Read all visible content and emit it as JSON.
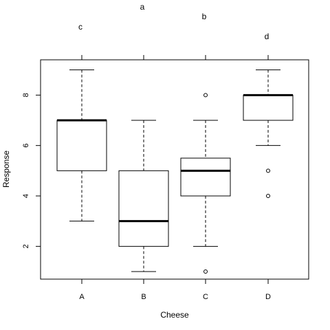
{
  "chart_data": {
    "type": "boxplot",
    "xlabel": "Cheese",
    "ylabel": "Response",
    "ylim": [
      0.7,
      9.4
    ],
    "yticks": [
      2,
      4,
      6,
      8
    ],
    "grid": false,
    "categories": [
      "A",
      "B",
      "C",
      "D"
    ],
    "boxes": [
      {
        "category": "A",
        "whisker_low": 3,
        "q1": 5,
        "median": 7,
        "q3": 7,
        "whisker_high": 9,
        "outliers": [],
        "letter": "c"
      },
      {
        "category": "B",
        "whisker_low": 1,
        "q1": 2,
        "median": 3,
        "q3": 5,
        "whisker_high": 7,
        "outliers": [],
        "letter": "a"
      },
      {
        "category": "C",
        "whisker_low": 2,
        "q1": 4,
        "median": 5,
        "q3": 5.5,
        "whisker_high": 7,
        "outliers": [
          1,
          8
        ],
        "letter": "b"
      },
      {
        "category": "D",
        "whisker_low": 6,
        "q1": 7,
        "median": 8,
        "q3": 8,
        "whisker_high": 9,
        "outliers": [
          4,
          5
        ],
        "letter": "d"
      }
    ]
  }
}
